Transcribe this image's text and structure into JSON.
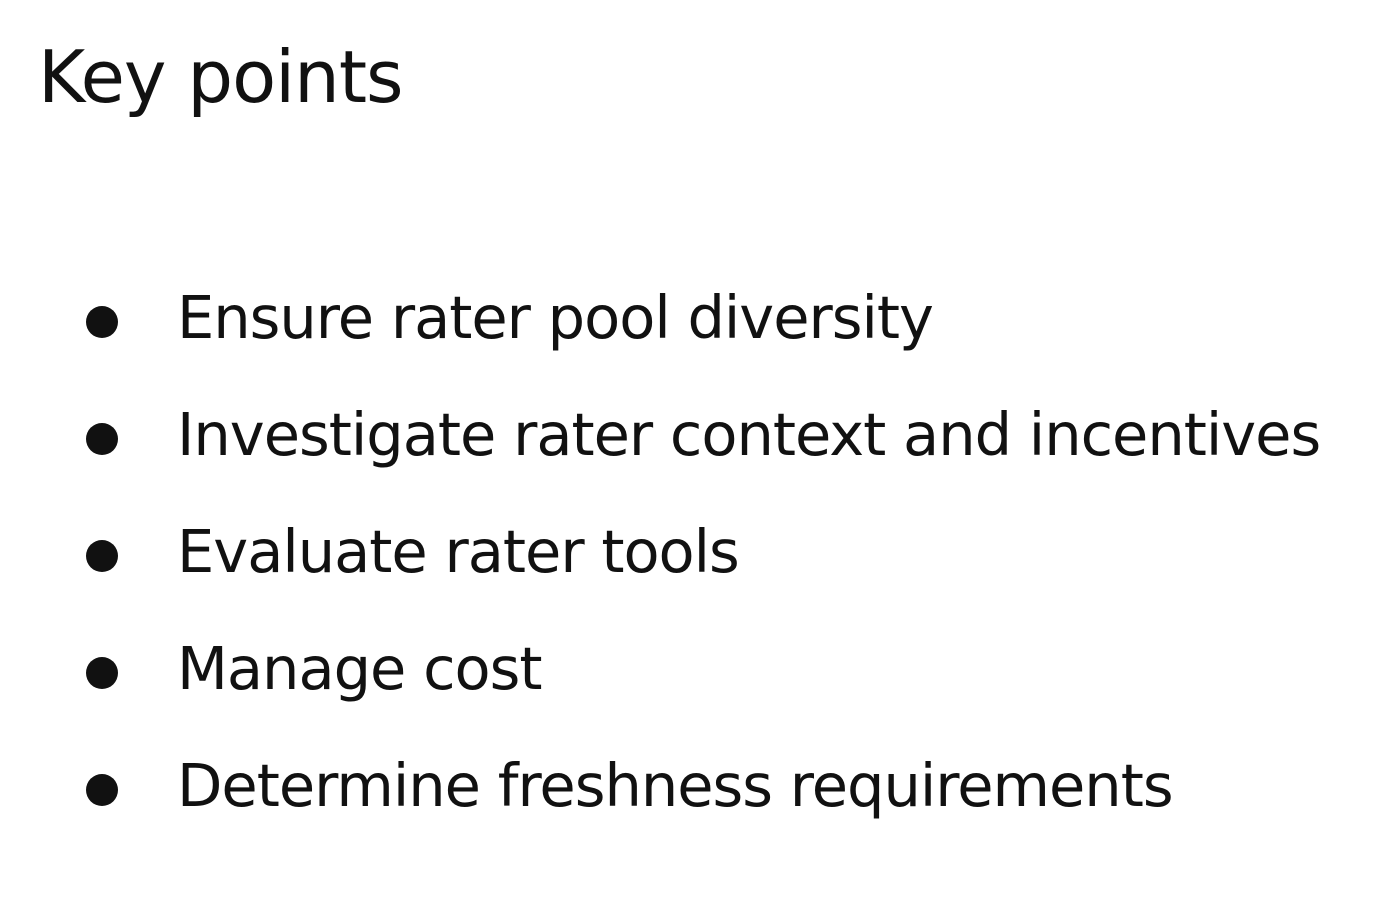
{
  "slide": {
    "title": "Key points",
    "bullets": [
      "Ensure rater pool diversity",
      "Investigate rater context and incentives",
      "Evaluate rater tools",
      "Manage cost",
      "Determine freshness requirements"
    ]
  },
  "colors": {
    "background": "#ffffff",
    "text": "#111111"
  },
  "icons": {
    "bullet": "bullet-dot-icon"
  }
}
